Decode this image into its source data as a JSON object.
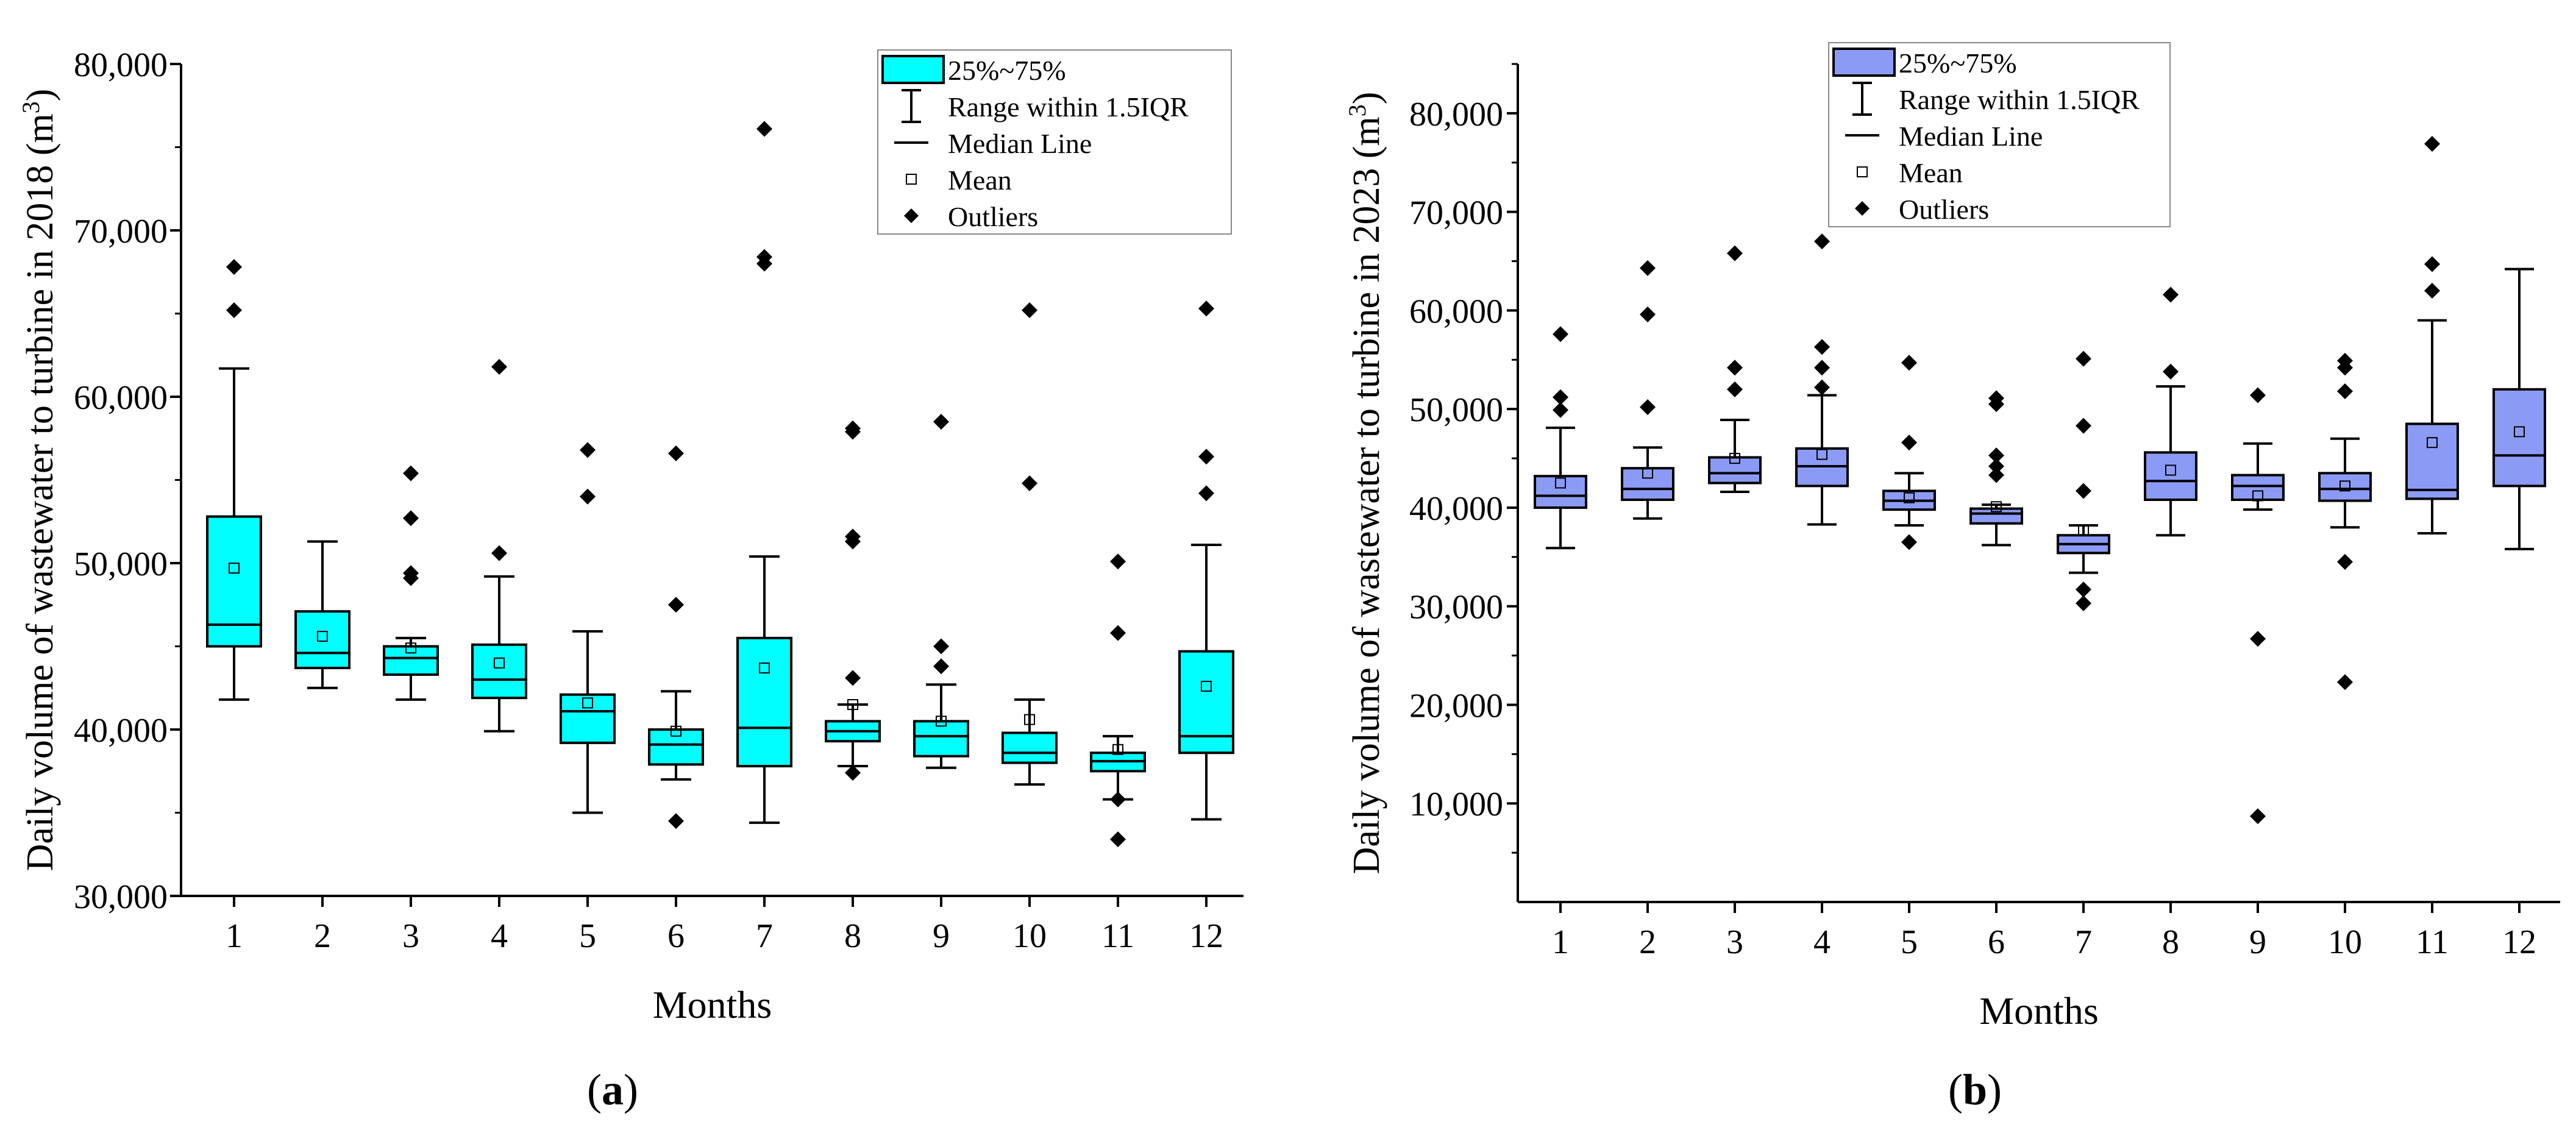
{
  "figure": {
    "caption_left": {
      "paren_open": "(",
      "letter": "a",
      "paren_close": ")"
    },
    "caption_right": {
      "paren_open": "(",
      "letter": "b",
      "paren_close": ")"
    }
  },
  "chart_data": [
    {
      "type": "box",
      "title": "",
      "xlabel": "Months",
      "ylabel": "Daily volume of wastewater to turbine in 2018 (m",
      "ylabel_sup": "3",
      "ylabel_end": ")",
      "box_color": "#00FFFF",
      "ylim": [
        30000,
        80000
      ],
      "yticks": [
        30000,
        40000,
        50000,
        60000,
        70000,
        80000
      ],
      "ytick_labels": [
        "30,000",
        "40,000",
        "50,000",
        "60,000",
        "70,000",
        "80,000"
      ],
      "minor_yticks": [
        35000,
        45000,
        55000,
        65000,
        75000
      ],
      "categories": [
        "1",
        "2",
        "3",
        "4",
        "5",
        "6",
        "7",
        "8",
        "9",
        "10",
        "11",
        "12"
      ],
      "legend": {
        "position": "top-right",
        "box_label": "25%~75%",
        "whisker_label": "Range within 1.5IQR",
        "median_label": "Median Line",
        "mean_label": "Mean",
        "outlier_label": "Outliers"
      },
      "boxes": [
        {
          "q1": 45000,
          "median": 46300,
          "q3": 52800,
          "lower": 41800,
          "upper": 61700,
          "mean": 49700,
          "outliers": [
            65200,
            67800
          ]
        },
        {
          "q1": 43700,
          "median": 44600,
          "q3": 47100,
          "lower": 42500,
          "upper": 51300,
          "mean": 45600,
          "outliers": []
        },
        {
          "q1": 43300,
          "median": 44300,
          "q3": 45000,
          "lower": 41800,
          "upper": 45500,
          "mean": 44900,
          "outliers": [
            49100,
            49400,
            52700,
            55400
          ]
        },
        {
          "q1": 41900,
          "median": 43000,
          "q3": 45100,
          "lower": 39900,
          "upper": 49200,
          "mean": 44000,
          "outliers": [
            50600,
            61800
          ]
        },
        {
          "q1": 39200,
          "median": 41100,
          "q3": 42100,
          "lower": 35000,
          "upper": 45900,
          "mean": 41600,
          "outliers": [
            54000,
            56800
          ]
        },
        {
          "q1": 37900,
          "median": 39100,
          "q3": 40000,
          "lower": 37000,
          "upper": 42300,
          "mean": 39900,
          "outliers": [
            34500,
            47500,
            56600
          ]
        },
        {
          "q1": 37800,
          "median": 40100,
          "q3": 45500,
          "lower": 34400,
          "upper": 50400,
          "mean": 43700,
          "outliers": [
            68000,
            68400,
            76100
          ]
        },
        {
          "q1": 39300,
          "median": 39900,
          "q3": 40500,
          "lower": 37800,
          "upper": 41500,
          "mean": 41500,
          "outliers": [
            37400,
            43100,
            51300,
            51600,
            57900,
            58100
          ]
        },
        {
          "q1": 38400,
          "median": 39600,
          "q3": 40500,
          "lower": 37700,
          "upper": 42700,
          "mean": 40500,
          "outliers": [
            43800,
            45000,
            58500
          ]
        },
        {
          "q1": 38000,
          "median": 38600,
          "q3": 39800,
          "lower": 36700,
          "upper": 41800,
          "mean": 40600,
          "outliers": [
            54800,
            65200
          ]
        },
        {
          "q1": 37500,
          "median": 38100,
          "q3": 38600,
          "lower": 35800,
          "upper": 39600,
          "mean": 38800,
          "outliers": [
            33400,
            35800,
            45800,
            50100
          ]
        },
        {
          "q1": 38600,
          "median": 39600,
          "q3": 44700,
          "lower": 34600,
          "upper": 51100,
          "mean": 42600,
          "outliers": [
            54200,
            56400,
            65300
          ]
        }
      ]
    },
    {
      "type": "box",
      "title": "",
      "xlabel": "Months",
      "ylabel": "Daily volume of wastewater to turbine in 2023 (m",
      "ylabel_sup": "3",
      "ylabel_end": ")",
      "box_color": "#8B9BF5",
      "ylim": [
        0,
        85000
      ],
      "yticks": [
        10000,
        20000,
        30000,
        40000,
        50000,
        60000,
        70000,
        80000
      ],
      "ytick_labels": [
        "10,000",
        "20,000",
        "30,000",
        "40,000",
        "50,000",
        "60,000",
        "70,000",
        "80,000"
      ],
      "minor_yticks": [
        5000,
        15000,
        25000,
        35000,
        45000,
        55000,
        65000,
        75000,
        85000
      ],
      "categories": [
        "1",
        "2",
        "3",
        "4",
        "5",
        "6",
        "7",
        "8",
        "9",
        "10",
        "11",
        "12"
      ],
      "legend": {
        "position": "top-right",
        "box_label": "25%~75%",
        "whisker_label": "Range within 1.5IQR",
        "median_label": "Median Line",
        "mean_label": "Mean",
        "outlier_label": "Outliers"
      },
      "boxes": [
        {
          "q1": 40000,
          "median": 41200,
          "q3": 43200,
          "lower": 35900,
          "upper": 48100,
          "mean": 42500,
          "outliers": [
            49900,
            51200,
            57600
          ]
        },
        {
          "q1": 40800,
          "median": 41900,
          "q3": 44000,
          "lower": 38900,
          "upper": 46100,
          "mean": 43500,
          "outliers": [
            50200,
            59600,
            64300
          ]
        },
        {
          "q1": 42500,
          "median": 43500,
          "q3": 45100,
          "lower": 41600,
          "upper": 48900,
          "mean": 45000,
          "outliers": [
            52000,
            54200,
            65800
          ]
        },
        {
          "q1": 42200,
          "median": 44200,
          "q3": 46000,
          "lower": 38300,
          "upper": 51400,
          "mean": 45400,
          "outliers": [
            52200,
            54200,
            56300,
            67000
          ]
        },
        {
          "q1": 39800,
          "median": 40700,
          "q3": 41700,
          "lower": 38200,
          "upper": 43500,
          "mean": 41000,
          "outliers": [
            36500,
            46600,
            54700
          ]
        },
        {
          "q1": 38400,
          "median": 39400,
          "q3": 39900,
          "lower": 36200,
          "upper": 40300,
          "mean": 40100,
          "outliers": [
            43300,
            44200,
            45300,
            50500,
            51100
          ]
        },
        {
          "q1": 35400,
          "median": 36300,
          "q3": 37200,
          "lower": 33400,
          "upper": 38200,
          "mean": 37700,
          "outliers": [
            30300,
            31700,
            41700,
            48300,
            55100
          ]
        },
        {
          "q1": 40800,
          "median": 42700,
          "q3": 45600,
          "lower": 37200,
          "upper": 52300,
          "mean": 43800,
          "outliers": [
            53800,
            61600
          ]
        },
        {
          "q1": 40800,
          "median": 42200,
          "q3": 43300,
          "lower": 39800,
          "upper": 46500,
          "mean": 41200,
          "outliers": [
            8700,
            26700,
            51400
          ]
        },
        {
          "q1": 40700,
          "median": 41900,
          "q3": 43500,
          "lower": 38000,
          "upper": 47000,
          "mean": 42200,
          "outliers": [
            22300,
            34500,
            51800,
            54200,
            54900
          ]
        },
        {
          "q1": 40900,
          "median": 41800,
          "q3": 48500,
          "lower": 37400,
          "upper": 59000,
          "mean": 46600,
          "outliers": [
            62000,
            64700,
            76900
          ]
        },
        {
          "q1": 42200,
          "median": 45300,
          "q3": 52000,
          "lower": 35800,
          "upper": 64200,
          "mean": 47700,
          "outliers": []
        }
      ]
    }
  ]
}
